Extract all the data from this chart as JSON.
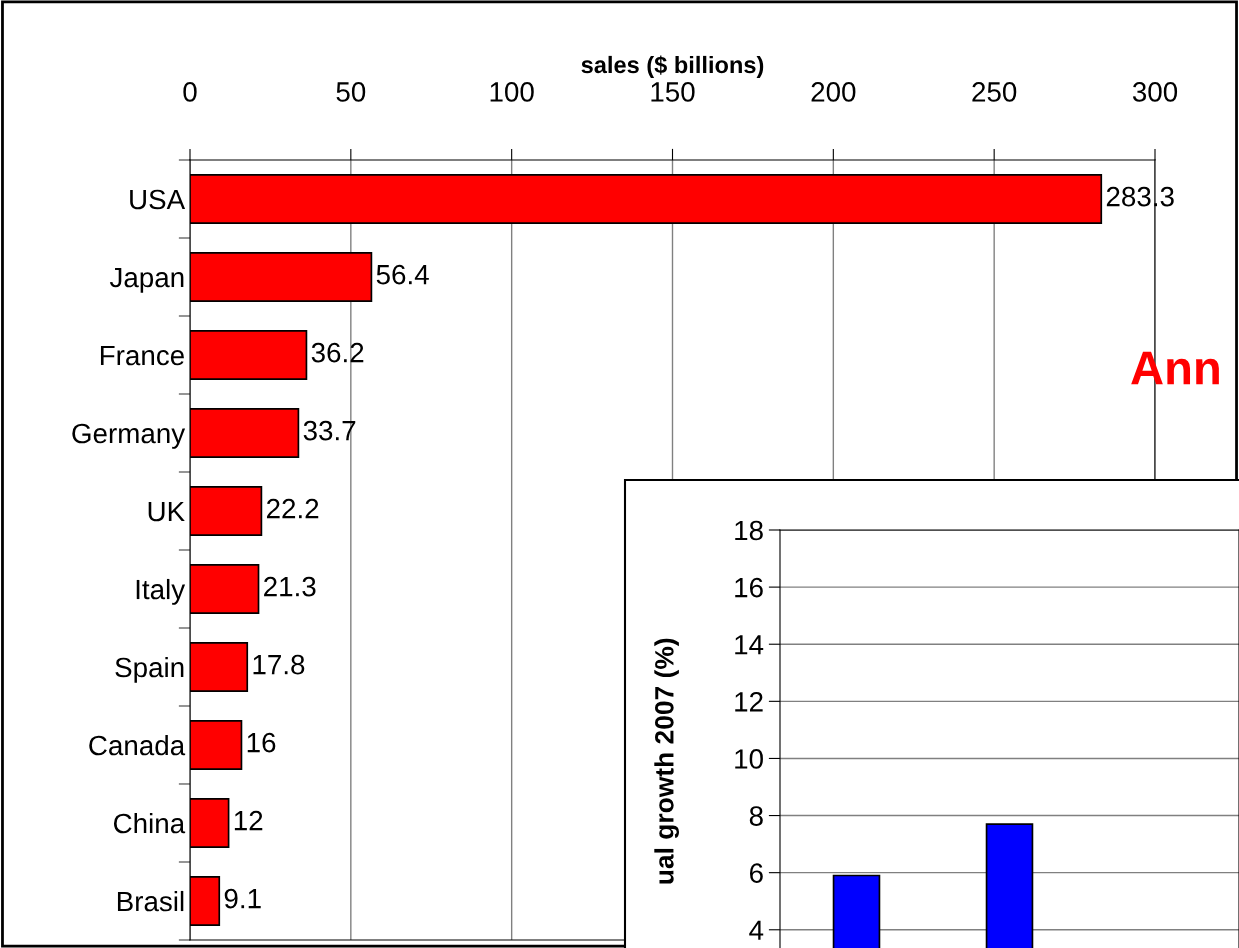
{
  "chart_data": [
    {
      "type": "bar",
      "orientation": "horizontal",
      "xlabel": "sales ($ billions)",
      "categories": [
        "USA",
        "Japan",
        "France",
        "Germany",
        "UK",
        "Italy",
        "Spain",
        "Canada",
        "China",
        "Brasil"
      ],
      "values": [
        283.3,
        56.4,
        36.2,
        33.7,
        22.2,
        21.3,
        17.8,
        16,
        12,
        9.1
      ],
      "color": "#ff0000",
      "xlim": [
        0,
        300
      ],
      "xticks": [
        0,
        50,
        100,
        150,
        200,
        250,
        300
      ],
      "grid": "x",
      "data_labels": true
    },
    {
      "type": "bar",
      "title": "Ann",
      "ylabel": "ual growth 2007 (%)",
      "categories": [
        null,
        null,
        null
      ],
      "values": [
        5.9,
        7.7,
        null
      ],
      "color": "#0000ff",
      "ylim": [
        0,
        18
      ],
      "yticks": [
        4,
        6,
        8,
        10,
        12,
        14,
        16,
        18
      ],
      "grid": "y"
    }
  ]
}
